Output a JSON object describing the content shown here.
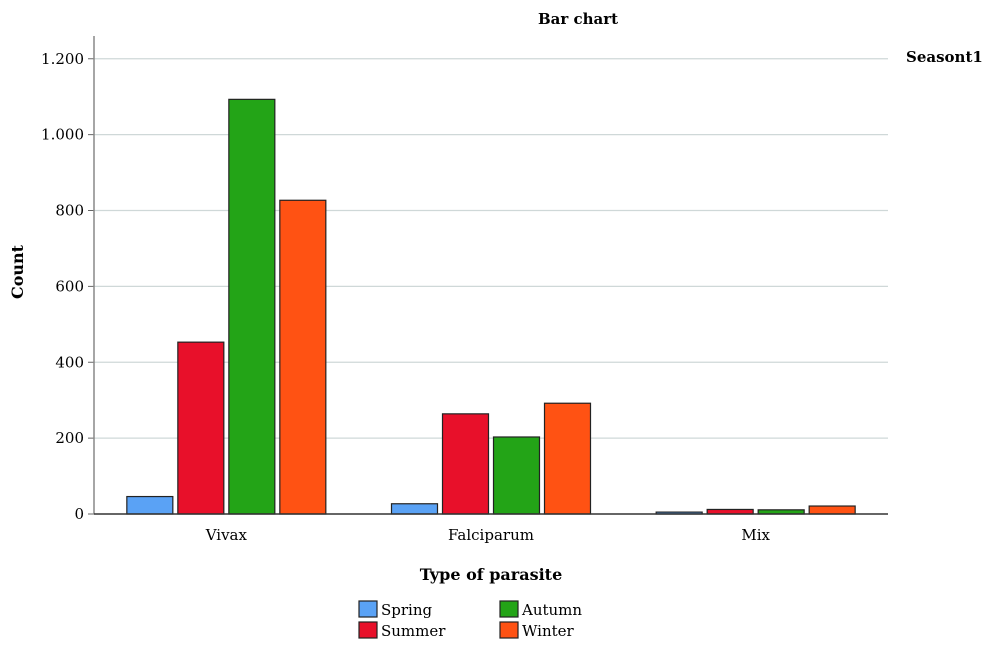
{
  "chart_data": {
    "type": "bar",
    "title": "Bar chart",
    "legend_title": "Seasont1",
    "xlabel": "Type of parasite",
    "ylabel": "Count",
    "categories": [
      "Vivax",
      "Falciparum",
      "Mix"
    ],
    "ylim": [
      0,
      1260
    ],
    "yticks": [
      0,
      200,
      400,
      600,
      800,
      1000,
      1200
    ],
    "ytick_labels": [
      "0",
      "200",
      "400",
      "600",
      "800",
      "1.000",
      "1.200"
    ],
    "grid": true,
    "legend_position": "bottom-center",
    "series": [
      {
        "name": "Spring",
        "color": "#5aa2f5",
        "values": [
          46,
          27,
          5
        ]
      },
      {
        "name": "Summer",
        "color": "#e8102a",
        "values": [
          453,
          264,
          12
        ]
      },
      {
        "name": "Autumn",
        "color": "#23a417",
        "values": [
          1093,
          203,
          11
        ]
      },
      {
        "name": "Winter",
        "color": "#ff5213",
        "values": [
          827,
          292,
          21
        ]
      }
    ]
  }
}
